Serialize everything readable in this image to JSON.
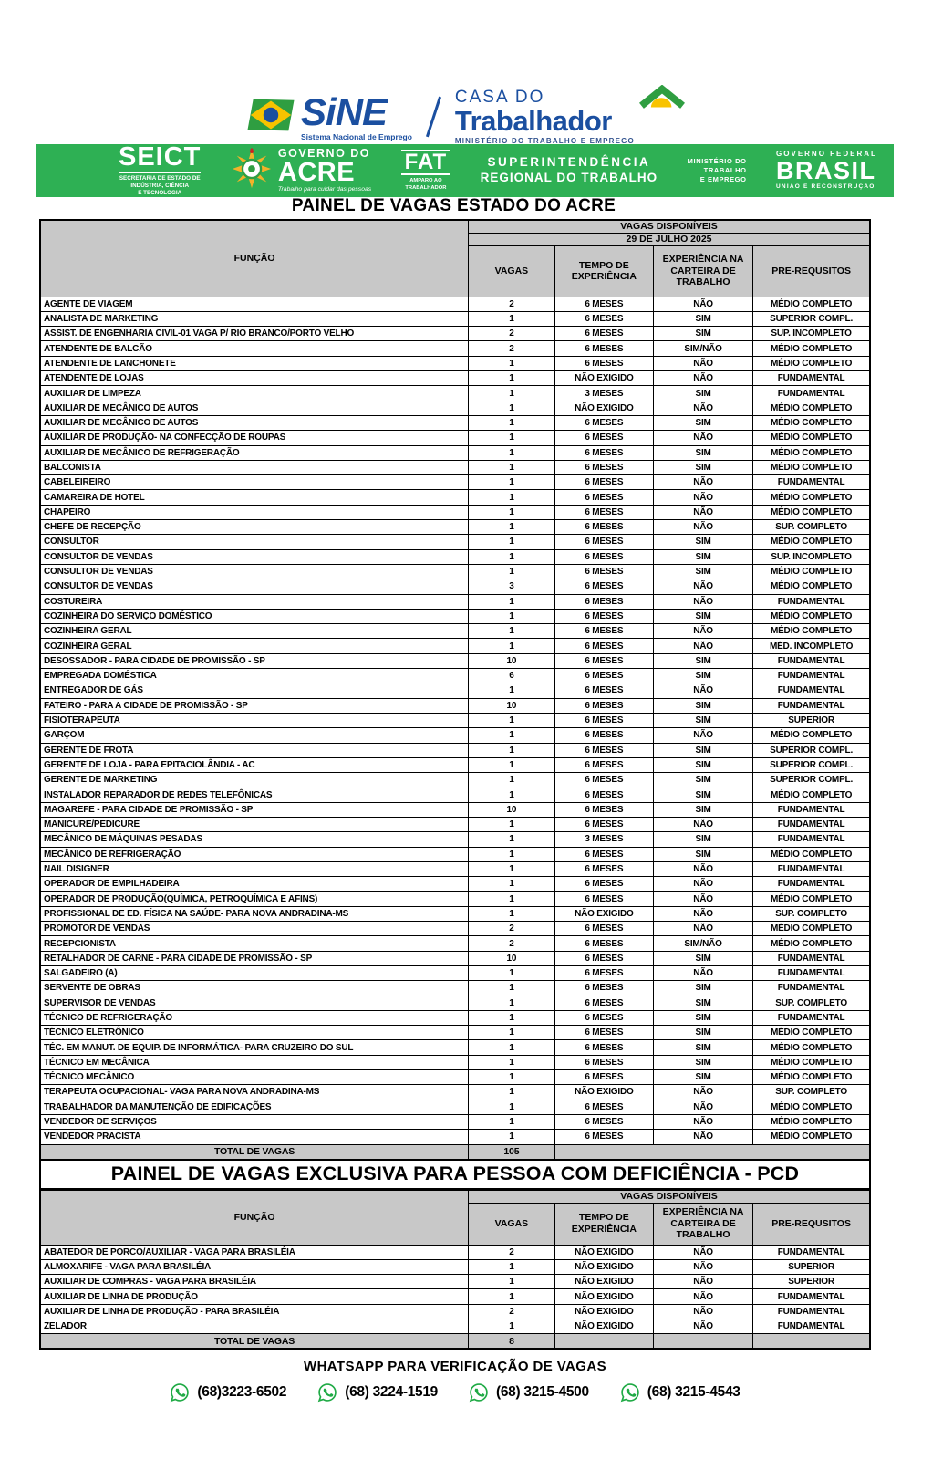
{
  "colors": {
    "brand_blue": "#1b4fa0",
    "banner_green": "#2eb054",
    "table_header_gray": "#c8c8c8",
    "whatsapp_green": "#1faa45",
    "flag_yellow": "#f8c300"
  },
  "icons": {
    "sine_flag": "brazil-flag-ribbon-icon",
    "casa_house": "house-roof-icon",
    "acre_coat": "acre-coat-of-arms-icon",
    "whatsapp": "whatsapp-icon"
  },
  "header": {
    "sine": {
      "name": "SiNE",
      "subtitle": "Sistema Nacional de Emprego"
    },
    "casa": {
      "line1": "CASA DO",
      "line2": "Trabalhador",
      "subtitle": "MINISTÉRIO DO TRABALHO E EMPREGO"
    },
    "seict": {
      "title": "SEICT",
      "sub1": "SECRETARIA DE ESTADO DE",
      "sub2": "INDÚSTRIA, CIÊNCIA",
      "sub3": "E TECNOLOGIA"
    },
    "governo_acre": {
      "line1": "GOVERNO DO",
      "line2": "ACRE",
      "subtitle": "Trabalho para cuidar das pessoas"
    },
    "fat": {
      "title": "FAT",
      "sub1": "AMPARO AO",
      "sub2": "TRABALHADOR"
    },
    "superintendencia": {
      "line1": "SUPERINTENDÊNCIA",
      "line2": "REGIONAL DO TRABALHO"
    },
    "ministerio": {
      "line1": "MINISTÉRIO DO",
      "line2": "TRABALHO",
      "line3": "E EMPREGO"
    },
    "brasil": {
      "line1": "GOVERNO FEDERAL",
      "line2": "BRASIL",
      "line3": "UNIÃO E RECONSTRUÇÃO"
    }
  },
  "main_table": {
    "title": "PAINEL DE VAGAS ESTADO DO ACRE",
    "vagas_disponiveis": "VAGAS DISPONÍVEIS",
    "date": "29 DE JULHO 2025",
    "columns": [
      "FUNÇÃO",
      "VAGAS",
      "TEMPO DE EXPERIÊNCIA",
      "EXPERIÊNCIA NA CARTEIRA DE TRABALHO",
      "PRE-REQUSITOS"
    ],
    "rows": [
      [
        "AGENTE DE VIAGEM",
        "2",
        "6 MESES",
        "NÃO",
        "MÉDIO COMPLETO"
      ],
      [
        "ANALISTA DE MARKETING",
        "1",
        "6 MESES",
        "SIM",
        "SUPERIOR COMPL."
      ],
      [
        "ASSIST. DE ENGENHARIA CIVIL-01 VAGA P/ RIO BRANCO/PORTO VELHO",
        "2",
        "6 MESES",
        "SIM",
        "SUP. INCOMPLETO"
      ],
      [
        "ATENDENTE DE BALCÃO",
        "2",
        "6 MESES",
        "SIM/NÃO",
        "MÉDIO COMPLETO"
      ],
      [
        "ATENDENTE DE LANCHONETE",
        "1",
        "6 MESES",
        "NÃO",
        "MÉDIO COMPLETO"
      ],
      [
        "ATENDENTE DE LOJAS",
        "1",
        "NÃO EXIGIDO",
        "NÃO",
        "FUNDAMENTAL"
      ],
      [
        "AUXILIAR DE LIMPEZA",
        "1",
        "3 MESES",
        "SIM",
        "FUNDAMENTAL"
      ],
      [
        "AUXILIAR DE MECÂNICO DE AUTOS",
        "1",
        "NÃO EXIGIDO",
        "NÃO",
        "MÉDIO COMPLETO"
      ],
      [
        "AUXILIAR DE MECÂNICO DE AUTOS",
        "1",
        "6 MESES",
        "SIM",
        "MÉDIO COMPLETO"
      ],
      [
        "AUXILIAR DE PRODUÇÃO- NA CONFECÇÃO DE ROUPAS",
        "1",
        "6 MESES",
        "NÃO",
        "MÉDIO COMPLETO"
      ],
      [
        "AUXILIAR DE MECÂNICO DE REFRIGERAÇÃO",
        "1",
        "6 MESES",
        "SIM",
        "MÉDIO COMPLETO"
      ],
      [
        "BALCONISTA",
        "1",
        "6 MESES",
        "SIM",
        "MÉDIO COMPLETO"
      ],
      [
        "CABELEIREIRO",
        "1",
        "6 MESES",
        "NÃO",
        "FUNDAMENTAL"
      ],
      [
        "CAMAREIRA DE HOTEL",
        "1",
        "6 MESES",
        "NÃO",
        "MÉDIO COMPLETO"
      ],
      [
        "CHAPEIRO",
        "1",
        "6 MESES",
        "NÃO",
        "MÉDIO COMPLETO"
      ],
      [
        "CHEFE DE RECEPÇÃO",
        "1",
        "6 MESES",
        "NÃO",
        "SUP. COMPLETO"
      ],
      [
        "CONSULTOR",
        "1",
        "6 MESES",
        "SIM",
        "MÉDIO COMPLETO"
      ],
      [
        "CONSULTOR DE VENDAS",
        "1",
        "6 MESES",
        "SIM",
        "SUP. INCOMPLETO"
      ],
      [
        "CONSULTOR DE VENDAS",
        "1",
        "6 MESES",
        "SIM",
        "MÉDIO COMPLETO"
      ],
      [
        "CONSULTOR DE VENDAS",
        "3",
        "6 MESES",
        "NÃO",
        "MÉDIO COMPLETO"
      ],
      [
        "COSTUREIRA",
        "1",
        "6 MESES",
        "NÃO",
        "FUNDAMENTAL"
      ],
      [
        "COZINHEIRA DO SERVIÇO DOMÉSTICO",
        "1",
        "6 MESES",
        "SIM",
        "MÉDIO COMPLETO"
      ],
      [
        "COZINHEIRA GERAL",
        "1",
        "6 MESES",
        "NÃO",
        "MÉDIO COMPLETO"
      ],
      [
        "COZINHEIRA GERAL",
        "1",
        "6 MESES",
        "NÃO",
        "MÉD. INCOMPLETO"
      ],
      [
        "DESOSSADOR - PARA CIDADE DE PROMISSÃO - SP",
        "10",
        "6 MESES",
        "SIM",
        "FUNDAMENTAL"
      ],
      [
        "EMPREGADA DOMÉSTICA",
        "6",
        "6 MESES",
        "SIM",
        "FUNDAMENTAL"
      ],
      [
        "ENTREGADOR DE GÁS",
        "1",
        "6 MESES",
        "NÃO",
        "FUNDAMENTAL"
      ],
      [
        "FATEIRO - PARA A CIDADE DE PROMISSÃO - SP",
        "10",
        "6 MESES",
        "SIM",
        "FUNDAMENTAL"
      ],
      [
        "FISIOTERAPEUTA",
        "1",
        "6 MESES",
        "SIM",
        "SUPERIOR"
      ],
      [
        "GARÇOM",
        "1",
        "6 MESES",
        "NÃO",
        "MÉDIO COMPLETO"
      ],
      [
        "GERENTE DE FROTA",
        "1",
        "6 MESES",
        "SIM",
        "SUPERIOR COMPL."
      ],
      [
        "GERENTE DE LOJA - PARA EPITACIOLÂNDIA - AC",
        "1",
        "6 MESES",
        "SIM",
        "SUPERIOR COMPL."
      ],
      [
        "GERENTE DE MARKETING",
        "1",
        "6 MESES",
        "SIM",
        "SUPERIOR COMPL."
      ],
      [
        "INSTALADOR REPARADOR DE REDES TELEFÔNICAS",
        "1",
        "6 MESES",
        "SIM",
        "MÉDIO COMPLETO"
      ],
      [
        "MAGAREFE - PARA CIDADE DE PROMISSÃO - SP",
        "10",
        "6 MESES",
        "SIM",
        "FUNDAMENTAL"
      ],
      [
        "MANICURE/PEDICURE",
        "1",
        "6 MESES",
        "NÃO",
        "FUNDAMENTAL"
      ],
      [
        "MECÂNICO DE MÁQUINAS PESADAS",
        "1",
        "3 MESES",
        "SIM",
        "FUNDAMENTAL"
      ],
      [
        "MECÂNICO DE REFRIGERAÇÃO",
        "1",
        "6 MESES",
        "SIM",
        "MÉDIO COMPLETO"
      ],
      [
        "NAIL DISIGNER",
        "1",
        "6 MESES",
        "NÃO",
        "FUNDAMENTAL"
      ],
      [
        "OPERADOR DE EMPILHADEIRA",
        "1",
        "6 MESES",
        "NÃO",
        "FUNDAMENTAL"
      ],
      [
        "OPERADOR DE PRODUÇÃO(QUÍMICA, PETROQUÍMICA E AFINS)",
        "1",
        "6 MESES",
        "NÃO",
        "MÉDIO COMPLETO"
      ],
      [
        "PROFISSIONAL DE ED. FÍSICA NA SAÚDE- PARA NOVA ANDRADINA-MS",
        "1",
        "NÃO EXIGIDO",
        "NÃO",
        "SUP. COMPLETO"
      ],
      [
        "PROMOTOR DE VENDAS",
        "2",
        "6 MESES",
        "NÃO",
        "MÉDIO COMPLETO"
      ],
      [
        "RECEPCIONISTA",
        "2",
        "6 MESES",
        "SIM/NÃO",
        "MÉDIO COMPLETO"
      ],
      [
        "RETALHADOR DE CARNE - PARA CIDADE DE PROMISSÃO - SP",
        "10",
        "6 MESES",
        "SIM",
        "FUNDAMENTAL"
      ],
      [
        "SALGADEIRO (A)",
        "1",
        "6 MESES",
        "NÃO",
        "FUNDAMENTAL"
      ],
      [
        "SERVENTE DE OBRAS",
        "1",
        "6 MESES",
        "SIM",
        "FUNDAMENTAL"
      ],
      [
        "SUPERVISOR DE VENDAS",
        "1",
        "6 MESES",
        "SIM",
        "SUP. COMPLETO"
      ],
      [
        "TÉCNICO DE REFRIGERAÇÃO",
        "1",
        "6 MESES",
        "SIM",
        "FUNDAMENTAL"
      ],
      [
        "TÉCNICO  ELETRÔNICO",
        "1",
        "6 MESES",
        "SIM",
        "MÉDIO COMPLETO"
      ],
      [
        "TÉC. EM MANUT. DE EQUIP. DE INFORMÁTICA- PARA CRUZEIRO DO SUL",
        "1",
        "6 MESES",
        "SIM",
        "MÉDIO COMPLETO"
      ],
      [
        "TÉCNICO EM MECÂNICA",
        "1",
        "6 MESES",
        "SIM",
        "MÉDIO COMPLETO"
      ],
      [
        "TÉCNICO  MECÂNICO",
        "1",
        "6 MESES",
        "SIM",
        "MÉDIO COMPLETO"
      ],
      [
        "TERAPEUTA OCUPACIONAL- VAGA PARA NOVA ANDRADINA-MS",
        "1",
        "NÃO EXIGIDO",
        "NÃO",
        "SUP. COMPLETO"
      ],
      [
        "TRABALHADOR DA MANUTENÇÃO DE EDIFICAÇÕES",
        "1",
        "6 MESES",
        "NÃO",
        "MÉDIO COMPLETO"
      ],
      [
        "VENDEDOR  DE SERVIÇOS",
        "1",
        "6 MESES",
        "NÃO",
        "MÉDIO COMPLETO"
      ],
      [
        "VENDEDOR PRACISTA",
        "1",
        "6 MESES",
        "NÃO",
        "MÉDIO COMPLETO"
      ]
    ],
    "total_label": "TOTAL DE VAGAS",
    "total_value": "105"
  },
  "pcd_table": {
    "title": "PAINEL DE VAGAS EXCLUSIVA PARA PESSOA COM DEFICIÊNCIA - PCD",
    "vagas_disponiveis": "VAGAS DISPONÍVEIS",
    "columns": [
      "FUNÇÃO",
      "VAGAS",
      "TEMPO DE EXPERIÊNCIA",
      "EXPERIÊNCIA NA CARTEIRA DE TRABALHO",
      "PRE-REQUSITOS"
    ],
    "rows": [
      [
        "ABATEDOR DE PORCO/AUXILIAR - VAGA PARA BRASILÉIA",
        "2",
        "NÃO EXIGIDO",
        "NÃO",
        "FUNDAMENTAL"
      ],
      [
        "ALMOXARIFE - VAGA PARA BRASILÉIA",
        "1",
        "NÃO EXIGIDO",
        "NÃO",
        "SUPERIOR"
      ],
      [
        "AUXILIAR DE COMPRAS - VAGA PARA BRASILÉIA",
        "1",
        "NÃO EXIGIDO",
        "NÃO",
        "SUPERIOR"
      ],
      [
        "AUXILIAR DE LINHA DE PRODUÇÃO",
        "1",
        "NÃO EXIGIDO",
        "NÃO",
        "FUNDAMENTAL"
      ],
      [
        "AUXILIAR DE LINHA DE PRODUÇÃO -  PARA BRASILÉIA",
        "2",
        "NÃO EXIGIDO",
        "NÃO",
        "FUNDAMENTAL"
      ],
      [
        "ZELADOR",
        "1",
        "NÃO EXIGIDO",
        "NÃO",
        "FUNDAMENTAL"
      ]
    ],
    "total_label": "TOTAL DE VAGAS",
    "total_value": "8"
  },
  "footer": {
    "title": "WHATSAPP PARA VERIFICAÇÃO DE VAGAS",
    "phones": [
      "(68)3223-6502",
      "(68) 3224-1519",
      "(68) 3215-4500",
      "(68) 3215-4543"
    ]
  }
}
